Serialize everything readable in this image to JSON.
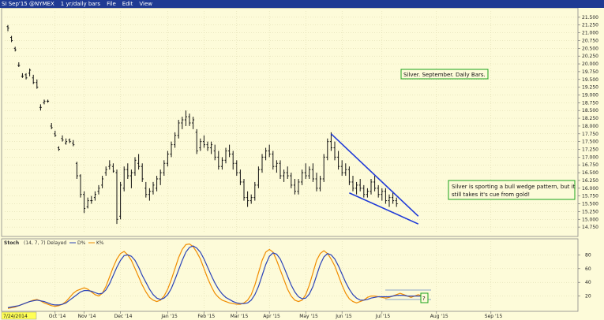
{
  "window": {
    "symbol": "SI Sep'15 @NYMEX",
    "timeframe": "1 yr/daily bars",
    "menu": [
      "File",
      "Edit",
      "View"
    ],
    "date_label": "7/24/2014"
  },
  "colors": {
    "background": "#fdfbd9",
    "titlebar": "#1f3a93",
    "price_bars": "#111111",
    "trendline": "#1f3ad8",
    "stoch_k": "#f08c00",
    "stoch_d": "#2b43b8",
    "annotation_border": "#1aa31a"
  },
  "chart_data": [
    {
      "type": "ohlc",
      "title": "",
      "x_tick_labels": [
        "Oct '14",
        "Nov '14",
        "Dec '14",
        "Jan '15",
        "Feb '15",
        "Mar '15",
        "Apr '15",
        "May '15",
        "Jun '15",
        "Jul '15",
        "Aug '15",
        "Sep '15"
      ],
      "y_tick_labels": [
        "14.750",
        "15.000",
        "15.250",
        "15.500",
        "15.750",
        "16.000",
        "16.250",
        "16.500",
        "16.750",
        "17.000",
        "17.250",
        "17.500",
        "17.750",
        "18.000",
        "18.250",
        "18.500",
        "18.750",
        "19.000",
        "19.250",
        "19.500",
        "19.750",
        "20.000",
        "20.250",
        "20.500",
        "20.750",
        "21.000",
        "21.250",
        "21.500"
      ],
      "ylim": [
        14.55,
        21.7
      ],
      "series": [
        {
          "values": [
            [
              21.2,
              21.25,
              21.05,
              21.15
            ],
            [
              20.85,
              20.9,
              20.7,
              20.75
            ],
            [
              20.5,
              20.55,
              20.4,
              20.45
            ],
            [
              19.95,
              20.05,
              19.9,
              19.95
            ],
            [
              19.6,
              19.7,
              19.55,
              19.6
            ],
            [
              19.65,
              19.7,
              19.5,
              19.55
            ],
            [
              19.7,
              19.85,
              19.6,
              19.8
            ],
            [
              19.55,
              19.65,
              19.35,
              19.4
            ],
            [
              19.4,
              19.5,
              19.2,
              19.25
            ],
            [
              18.6,
              18.7,
              18.5,
              18.6
            ],
            [
              18.75,
              18.85,
              18.7,
              18.8
            ],
            [
              18.8,
              18.85,
              18.75,
              18.8
            ],
            [
              18.0,
              18.1,
              17.9,
              17.95
            ],
            [
              17.75,
              17.85,
              17.65,
              17.7
            ],
            [
              17.3,
              17.35,
              17.2,
              17.25
            ],
            [
              17.6,
              17.7,
              17.5,
              17.55
            ],
            [
              17.45,
              17.6,
              17.4,
              17.5
            ],
            [
              17.55,
              17.6,
              17.45,
              17.5
            ],
            [
              17.45,
              17.55,
              17.35,
              17.4
            ],
            [
              16.8,
              16.85,
              16.3,
              16.4
            ],
            [
              16.4,
              16.45,
              15.7,
              15.8
            ],
            [
              15.8,
              15.9,
              15.2,
              15.35
            ],
            [
              15.4,
              15.7,
              15.35,
              15.6
            ],
            [
              15.6,
              15.75,
              15.5,
              15.6
            ],
            [
              15.7,
              15.9,
              15.6,
              15.8
            ],
            [
              15.9,
              16.1,
              15.8,
              16.0
            ],
            [
              16.1,
              16.4,
              16.0,
              16.3
            ],
            [
              16.5,
              16.7,
              16.4,
              16.6
            ],
            [
              16.7,
              16.9,
              16.6,
              16.75
            ],
            [
              16.7,
              16.8,
              16.5,
              16.55
            ],
            [
              16.5,
              16.6,
              14.85,
              15.0
            ],
            [
              15.1,
              16.2,
              15.0,
              16.1
            ],
            [
              16.0,
              16.7,
              15.9,
              16.6
            ],
            [
              16.6,
              16.8,
              16.3,
              16.4
            ],
            [
              16.4,
              16.6,
              16.0,
              16.5
            ],
            [
              16.5,
              17.0,
              16.4,
              16.9
            ],
            [
              16.8,
              17.1,
              16.6,
              16.7
            ],
            [
              16.7,
              16.8,
              16.2,
              16.3
            ],
            [
              16.0,
              16.2,
              15.7,
              15.8
            ],
            [
              15.8,
              16.0,
              15.6,
              15.9
            ],
            [
              15.9,
              16.2,
              15.8,
              16.1
            ],
            [
              16.0,
              16.4,
              15.9,
              16.3
            ],
            [
              16.3,
              16.6,
              16.1,
              16.5
            ],
            [
              16.5,
              16.9,
              16.4,
              16.8
            ],
            [
              16.8,
              17.2,
              16.7,
              17.1
            ],
            [
              17.1,
              17.5,
              17.0,
              17.4
            ],
            [
              17.4,
              17.8,
              17.3,
              17.7
            ],
            [
              17.7,
              18.2,
              17.6,
              18.1
            ],
            [
              18.1,
              18.3,
              17.9,
              18.2
            ],
            [
              18.2,
              18.5,
              18.0,
              18.3
            ],
            [
              18.3,
              18.4,
              18.0,
              18.1
            ],
            [
              18.1,
              18.3,
              17.9,
              18.2
            ],
            [
              17.8,
              17.9,
              17.1,
              17.2
            ],
            [
              17.3,
              17.6,
              17.2,
              17.5
            ],
            [
              17.5,
              17.7,
              17.3,
              17.4
            ],
            [
              17.4,
              17.5,
              17.2,
              17.3
            ],
            [
              17.3,
              17.5,
              17.1,
              17.4
            ],
            [
              17.2,
              17.4,
              16.9,
              17.0
            ],
            [
              17.0,
              17.2,
              16.6,
              16.7
            ],
            [
              16.7,
              17.0,
              16.6,
              16.9
            ],
            [
              16.9,
              17.3,
              16.8,
              17.2
            ],
            [
              17.2,
              17.4,
              17.0,
              17.1
            ],
            [
              17.1,
              17.2,
              16.6,
              16.8
            ],
            [
              16.8,
              16.9,
              16.4,
              16.5
            ],
            [
              16.5,
              16.6,
              16.1,
              16.2
            ],
            [
              16.2,
              16.3,
              15.6,
              15.7
            ],
            [
              15.7,
              15.9,
              15.4,
              15.6
            ],
            [
              15.6,
              15.8,
              15.5,
              15.7
            ],
            [
              15.7,
              16.2,
              15.6,
              16.1
            ],
            [
              16.1,
              16.7,
              16.0,
              16.6
            ],
            [
              16.6,
              17.1,
              16.5,
              17.0
            ],
            [
              17.0,
              17.3,
              16.9,
              17.2
            ],
            [
              17.2,
              17.4,
              17.0,
              17.1
            ],
            [
              17.1,
              17.2,
              16.6,
              16.7
            ],
            [
              16.7,
              16.9,
              16.5,
              16.8
            ],
            [
              16.8,
              16.9,
              16.3,
              16.4
            ],
            [
              16.4,
              16.6,
              16.2,
              16.5
            ],
            [
              16.5,
              16.7,
              16.3,
              16.4
            ],
            [
              16.4,
              16.5,
              16.0,
              16.1
            ],
            [
              16.1,
              16.3,
              15.8,
              15.9
            ],
            [
              15.9,
              16.3,
              15.8,
              16.2
            ],
            [
              16.2,
              16.6,
              16.1,
              16.5
            ],
            [
              16.5,
              16.8,
              16.3,
              16.4
            ],
            [
              16.4,
              16.7,
              16.3,
              16.6
            ],
            [
              16.6,
              16.8,
              16.2,
              16.3
            ],
            [
              16.3,
              16.5,
              15.9,
              16.0
            ],
            [
              16.0,
              16.4,
              15.9,
              16.3
            ],
            [
              16.3,
              17.1,
              16.2,
              17.0
            ],
            [
              17.0,
              17.6,
              16.9,
              17.5
            ],
            [
              17.5,
              17.8,
              17.2,
              17.3
            ],
            [
              17.3,
              17.5,
              16.9,
              17.0
            ],
            [
              17.0,
              17.2,
              16.6,
              16.7
            ],
            [
              16.7,
              16.9,
              16.4,
              16.5
            ],
            [
              16.5,
              16.8,
              16.4,
              16.6
            ],
            [
              16.6,
              16.7,
              16.1,
              16.2
            ],
            [
              16.2,
              16.4,
              15.9,
              16.0
            ],
            [
              16.0,
              16.2,
              15.8,
              16.1
            ],
            [
              16.1,
              16.3,
              15.9,
              16.0
            ],
            [
              16.0,
              16.1,
              15.7,
              15.8
            ],
            [
              15.8,
              16.0,
              15.7,
              15.9
            ],
            [
              15.9,
              16.3,
              15.8,
              16.2
            ],
            [
              16.2,
              16.4,
              15.9,
              16.0
            ],
            [
              16.0,
              16.1,
              15.7,
              15.8
            ],
            [
              15.8,
              16.0,
              15.6,
              15.9
            ],
            [
              15.9,
              16.0,
              15.5,
              15.6
            ],
            [
              15.6,
              15.8,
              15.4,
              15.7
            ],
            [
              15.7,
              15.9,
              15.5,
              15.6
            ],
            [
              15.6,
              15.7,
              15.4,
              15.5
            ]
          ]
        }
      ],
      "trendlines": [
        {
          "from": [
            89,
            17.75
          ],
          "to": [
            113,
            15.1
          ]
        },
        {
          "from": [
            94,
            15.85
          ],
          "to": [
            113,
            14.85
          ]
        }
      ],
      "annotations": [
        {
          "text": "Silver. September. Daily Bars."
        },
        {
          "lines": [
            "Silver is sporting a bull wedge pattern, but it",
            "still takes it's cue from gold!"
          ]
        }
      ]
    },
    {
      "type": "line",
      "indicator_name": "Stoch",
      "indicator_params": "(14, 7, 7) Delayed",
      "legend": [
        "D%",
        "K%"
      ],
      "y_tick_labels": [
        "20",
        "40",
        "60",
        "80"
      ],
      "ylim": [
        0,
        100
      ],
      "series": [
        {
          "name": "K%",
          "values": [
            2,
            3,
            4,
            6,
            8,
            10,
            12,
            14,
            15,
            13,
            10,
            8,
            6,
            5,
            6,
            8,
            12,
            18,
            24,
            28,
            30,
            32,
            30,
            26,
            22,
            20,
            24,
            34,
            48,
            62,
            74,
            82,
            85,
            80,
            72,
            60,
            48,
            36,
            26,
            18,
            14,
            12,
            14,
            20,
            30,
            44,
            60,
            76,
            88,
            95,
            96,
            92,
            84,
            74,
            60,
            46,
            34,
            24,
            18,
            14,
            12,
            10,
            9,
            8,
            8,
            10,
            14,
            22,
            36,
            54,
            72,
            84,
            88,
            84,
            72,
            58,
            44,
            30,
            20,
            14,
            12,
            14,
            22,
            36,
            54,
            72,
            82,
            86,
            82,
            74,
            64,
            50,
            36,
            24,
            16,
            12,
            10,
            12,
            14,
            18,
            20,
            20,
            19,
            18,
            17,
            18,
            20,
            22,
            24,
            22,
            20,
            18,
            20,
            22,
            20,
            18
          ]
        },
        {
          "name": "D%",
          "values": [
            3,
            4,
            5,
            6,
            8,
            10,
            12,
            13,
            14,
            13,
            12,
            10,
            8,
            7,
            7,
            8,
            10,
            14,
            18,
            22,
            26,
            28,
            28,
            27,
            25,
            23,
            24,
            29,
            38,
            50,
            62,
            72,
            79,
            80,
            78,
            72,
            62,
            50,
            40,
            30,
            22,
            17,
            15,
            17,
            22,
            31,
            44,
            58,
            72,
            84,
            91,
            93,
            90,
            84,
            74,
            62,
            50,
            39,
            30,
            23,
            18,
            15,
            12,
            10,
            9,
            9,
            10,
            14,
            22,
            34,
            50,
            66,
            78,
            83,
            81,
            74,
            62,
            49,
            36,
            26,
            19,
            16,
            17,
            23,
            34,
            50,
            66,
            77,
            82,
            80,
            74,
            64,
            52,
            40,
            30,
            22,
            17,
            14,
            14,
            15,
            17,
            18,
            19,
            19,
            19,
            19,
            20,
            21,
            21,
            21,
            20,
            20,
            20,
            20,
            20,
            19
          ]
        }
      ],
      "annotations": [
        {
          "text": "?"
        }
      ]
    }
  ]
}
